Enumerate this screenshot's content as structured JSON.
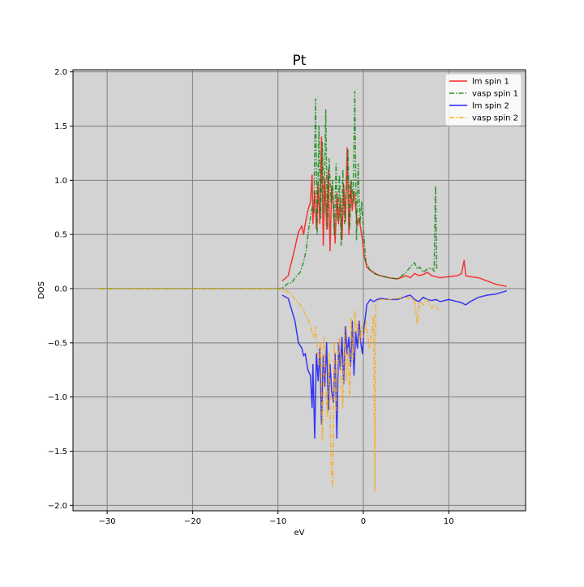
{
  "chart_data": {
    "type": "line",
    "title": "Pt",
    "xlabel": "eV",
    "ylabel": "DOS",
    "xlim": [
      -34,
      19
    ],
    "ylim": [
      -2.05,
      2.02
    ],
    "xticks": [
      -30,
      -20,
      -10,
      0,
      10
    ],
    "xtick_labels": [
      "−30",
      "−20",
      "−10",
      "0",
      "10"
    ],
    "yticks": [
      -2.0,
      -1.5,
      -1.0,
      -0.5,
      0.0,
      0.5,
      1.0,
      1.5,
      2.0
    ],
    "ytick_labels": [
      "−2.0",
      "−1.5",
      "−1.0",
      "−0.5",
      "0.0",
      "0.5",
      "1.0",
      "1.5",
      "2.0"
    ],
    "grid": true,
    "legend_position": "top-right",
    "colors": {
      "background": "#d3d3d3",
      "grid": "#808080",
      "lm_spin_1": "#ff0000",
      "vasp_spin_1": "#008000",
      "lm_spin_2": "#0000ff",
      "vasp_spin_2": "#ffa500"
    },
    "series": [
      {
        "name": "lm spin 1",
        "style": "solid",
        "color": "#ff0000",
        "x": [
          -9.5,
          -8.8,
          -8.0,
          -7.6,
          -7.2,
          -7.0,
          -6.8,
          -6.5,
          -6.2,
          -6.0,
          -5.9,
          -5.7,
          -5.5,
          -5.3,
          -5.1,
          -4.9,
          -4.7,
          -4.5,
          -4.3,
          -4.1,
          -3.9,
          -3.7,
          -3.5,
          -3.3,
          -3.1,
          -2.9,
          -2.7,
          -2.5,
          -2.3,
          -2.1,
          -1.9,
          -1.7,
          -1.5,
          -1.3,
          -1.1,
          -0.9,
          -0.7,
          -0.5,
          -0.3,
          -0.1,
          0.1,
          0.4,
          0.8,
          1.2,
          1.6,
          2.0,
          3.0,
          4.0,
          5.0,
          5.5,
          6.0,
          6.5,
          7.0,
          7.5,
          8.0,
          8.5,
          9.0,
          10.0,
          11.0,
          11.5,
          11.8,
          12.0,
          12.5,
          13.5,
          14.5,
          15.5,
          16.8
        ],
        "y": [
          0.07,
          0.12,
          0.38,
          0.52,
          0.58,
          0.5,
          0.6,
          0.72,
          0.8,
          1.05,
          0.6,
          0.9,
          0.55,
          0.98,
          0.6,
          1.4,
          0.4,
          1.02,
          0.55,
          1.1,
          0.35,
          0.95,
          0.75,
          0.42,
          0.88,
          0.6,
          0.83,
          0.45,
          0.96,
          0.62,
          1.3,
          0.5,
          0.98,
          0.72,
          0.9,
          0.75,
          0.58,
          0.65,
          0.55,
          0.45,
          0.3,
          0.2,
          0.17,
          0.15,
          0.13,
          0.12,
          0.1,
          0.09,
          0.12,
          0.1,
          0.14,
          0.12,
          0.13,
          0.15,
          0.12,
          0.11,
          0.1,
          0.11,
          0.12,
          0.14,
          0.26,
          0.12,
          0.11,
          0.1,
          0.07,
          0.04,
          0.02
        ]
      },
      {
        "name": "vasp spin 1",
        "style": "dashdot",
        "color": "#008000",
        "x": [
          -31,
          -28,
          -25,
          -22,
          -19,
          -16,
          -13,
          -11,
          -10.0,
          -9.4,
          -8.8,
          -8.4,
          -8.0,
          -7.4,
          -7.0,
          -6.7,
          -6.4,
          -6.0,
          -5.8,
          -5.6,
          -5.4,
          -5.2,
          -5.0,
          -4.8,
          -4.6,
          -4.4,
          -4.2,
          -4.0,
          -3.8,
          -3.6,
          -3.4,
          -3.2,
          -3.0,
          -2.8,
          -2.6,
          -2.4,
          -2.2,
          -2.0,
          -1.8,
          -1.6,
          -1.4,
          -1.2,
          -1.0,
          -0.8,
          -0.6,
          -0.4,
          -0.2,
          0.0,
          0.3,
          0.7,
          1.2,
          2.0,
          3.0,
          4.0,
          5.0,
          5.5,
          6.0,
          6.3,
          6.6,
          7.0,
          7.5,
          8.0,
          8.3,
          8.45,
          8.6
        ],
        "y": [
          0.0,
          0.0,
          0.0,
          0.0,
          0.0,
          0.0,
          0.0,
          0.0,
          0.0,
          0.01,
          0.05,
          0.05,
          0.1,
          0.15,
          0.25,
          0.35,
          0.55,
          0.75,
          0.7,
          1.75,
          0.5,
          1.5,
          0.65,
          1.35,
          0.7,
          1.65,
          0.55,
          1.2,
          0.8,
          1.0,
          0.5,
          1.15,
          0.62,
          1.05,
          0.4,
          1.1,
          0.6,
          0.9,
          1.28,
          0.55,
          1.0,
          0.8,
          1.82,
          0.45,
          1.15,
          0.6,
          0.8,
          0.55,
          0.25,
          0.18,
          0.14,
          0.12,
          0.1,
          0.09,
          0.15,
          0.2,
          0.24,
          0.18,
          0.2,
          0.15,
          0.18,
          0.19,
          0.16,
          0.95,
          0.17
        ]
      },
      {
        "name": "lm spin 2",
        "style": "solid",
        "color": "#0000ff",
        "x": [
          -9.5,
          -8.8,
          -8.0,
          -7.6,
          -7.2,
          -7.0,
          -6.8,
          -6.5,
          -6.2,
          -6.0,
          -5.9,
          -5.7,
          -5.5,
          -5.3,
          -5.1,
          -4.9,
          -4.7,
          -4.5,
          -4.3,
          -4.1,
          -3.9,
          -3.7,
          -3.5,
          -3.3,
          -3.1,
          -2.9,
          -2.7,
          -2.5,
          -2.3,
          -2.1,
          -1.9,
          -1.7,
          -1.5,
          -1.3,
          -1.1,
          -0.9,
          -0.7,
          -0.5,
          -0.3,
          -0.1,
          0.1,
          0.4,
          0.8,
          1.2,
          1.6,
          2.0,
          3.0,
          4.0,
          5.0,
          5.5,
          6.0,
          6.5,
          7.0,
          7.5,
          8.0,
          8.5,
          9.0,
          10.0,
          11.0,
          11.5,
          12.0,
          12.5,
          13.5,
          14.5,
          15.5,
          16.8
        ],
        "y": [
          -0.06,
          -0.09,
          -0.3,
          -0.5,
          -0.55,
          -0.62,
          -0.6,
          -0.75,
          -0.8,
          -1.1,
          -0.7,
          -1.38,
          -0.6,
          -0.85,
          -0.55,
          -1.25,
          -0.62,
          -0.9,
          -0.5,
          -1.12,
          -0.7,
          -0.95,
          -1.05,
          -0.6,
          -1.38,
          -0.5,
          -0.75,
          -0.45,
          -0.88,
          -0.35,
          -0.6,
          -0.45,
          -0.72,
          -0.3,
          -0.8,
          -0.4,
          -0.55,
          -0.3,
          -0.5,
          -0.6,
          -0.35,
          -0.15,
          -0.1,
          -0.12,
          -0.1,
          -0.09,
          -0.1,
          -0.1,
          -0.07,
          -0.06,
          -0.1,
          -0.12,
          -0.08,
          -0.1,
          -0.11,
          -0.1,
          -0.12,
          -0.1,
          -0.12,
          -0.13,
          -0.15,
          -0.12,
          -0.08,
          -0.06,
          -0.05,
          -0.02
        ]
      },
      {
        "name": "vasp spin 2",
        "style": "dashdot",
        "color": "#ffa500",
        "x": [
          -31,
          -28,
          -25,
          -22,
          -19,
          -16,
          -13,
          -11,
          -10.0,
          -9.4,
          -8.8,
          -8.4,
          -8.0,
          -7.4,
          -7.0,
          -6.7,
          -6.4,
          -6.0,
          -5.8,
          -5.6,
          -5.4,
          -5.2,
          -5.0,
          -4.8,
          -4.6,
          -4.4,
          -4.2,
          -4.0,
          -3.8,
          -3.6,
          -3.4,
          -3.2,
          -3.0,
          -2.8,
          -2.6,
          -2.4,
          -2.2,
          -2.0,
          -1.8,
          -1.6,
          -1.4,
          -1.2,
          -1.0,
          -0.8,
          -0.6,
          -0.4,
          -0.2,
          0.0,
          0.3,
          0.7,
          1.0,
          1.2,
          1.35,
          1.45,
          1.6,
          2.0,
          3.0,
          4.0,
          5.0,
          6.0,
          6.3,
          6.6,
          7.0,
          7.5,
          8.0,
          8.4,
          8.8
        ],
        "y": [
          0.0,
          0.0,
          0.0,
          0.0,
          0.0,
          0.0,
          0.0,
          0.0,
          0.0,
          -0.01,
          -0.03,
          -0.05,
          -0.1,
          -0.15,
          -0.2,
          -0.25,
          -0.3,
          -0.4,
          -0.45,
          -0.35,
          -0.55,
          -0.7,
          -0.5,
          -1.4,
          -0.45,
          -0.9,
          -1.18,
          -0.6,
          -1.6,
          -1.83,
          -0.5,
          -1.15,
          -0.7,
          -0.45,
          -0.9,
          -1.1,
          -0.35,
          -0.85,
          -0.55,
          -1.0,
          -0.28,
          -0.65,
          -0.2,
          -0.4,
          -0.3,
          -0.5,
          -0.35,
          -0.45,
          -0.3,
          -0.55,
          -0.4,
          -0.25,
          -1.87,
          -0.15,
          -0.12,
          -0.1,
          -0.1,
          -0.09,
          -0.08,
          -0.1,
          -0.32,
          -0.12,
          -0.15,
          -0.1,
          -0.18,
          -0.15,
          -0.2
        ]
      }
    ]
  }
}
